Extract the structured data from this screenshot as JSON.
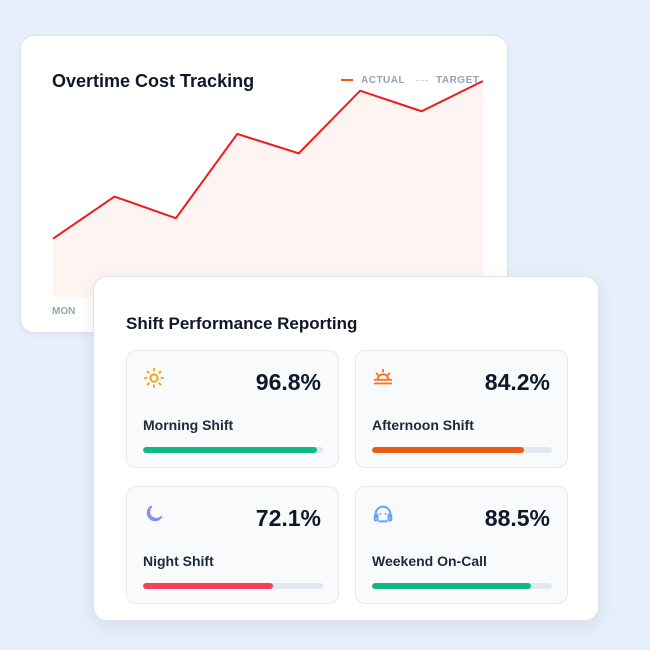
{
  "overtime": {
    "title": "Overtime Cost Tracking",
    "legend": {
      "actual": "ACTUAL",
      "target": "TARGET"
    },
    "chart_data": {
      "type": "area",
      "title": "Overtime Cost Tracking",
      "x_tick_labels": [
        "MON"
      ],
      "values": [
        27,
        46.5,
        36.5,
        75.5,
        66.5,
        95.5,
        86,
        100
      ],
      "series": [
        {
          "name": "ACTUAL",
          "color": "#ef1a1a"
        },
        {
          "name": "TARGET",
          "color": "#cbd5e1"
        }
      ],
      "fill_color": "#fef4f2",
      "grid": false
    }
  },
  "performance": {
    "title": "Shift Performance Reporting",
    "tiles": [
      {
        "icon": "sun-icon",
        "value": "96.8%",
        "label": "Morning Shift",
        "progress": 96.8,
        "color": "#10b981",
        "icon_color": "#f59e0b"
      },
      {
        "icon": "sunset-icon",
        "value": "84.2%",
        "label": "Afternoon Shift",
        "progress": 84.2,
        "color": "#ea5c16",
        "icon_color": "#f97316"
      },
      {
        "icon": "moon-icon",
        "value": "72.1%",
        "label": "Night Shift",
        "progress": 72.1,
        "color": "#f43f5e",
        "icon_color": "#818cf8"
      },
      {
        "icon": "headset-icon",
        "value": "88.5%",
        "label": "Weekend On-Call",
        "progress": 88.5,
        "color": "#10b981",
        "icon_color": "#60a5fa"
      }
    ]
  }
}
